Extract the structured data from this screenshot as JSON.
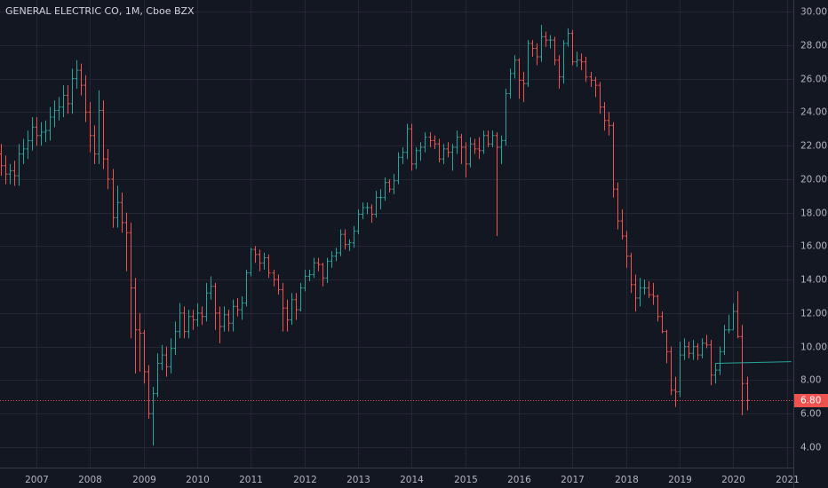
{
  "chart_data": {
    "type": "ohlc",
    "title": "GENERAL ELECTRIC CO, 1M, Cboe BZX",
    "x": [
      "2006-05",
      "2006-06",
      "2006-07",
      "2006-08",
      "2006-09",
      "2006-10",
      "2006-11",
      "2006-12",
      "2007-01",
      "2007-02",
      "2007-03",
      "2007-04",
      "2007-05",
      "2007-06",
      "2007-07",
      "2007-08",
      "2007-09",
      "2007-10",
      "2007-11",
      "2007-12",
      "2008-01",
      "2008-02",
      "2008-03",
      "2008-04",
      "2008-05",
      "2008-06",
      "2008-07",
      "2008-08",
      "2008-09",
      "2008-10",
      "2008-11",
      "2008-12",
      "2009-01",
      "2009-02",
      "2009-03",
      "2009-04",
      "2009-05",
      "2009-06",
      "2009-07",
      "2009-08",
      "2009-09",
      "2009-10",
      "2009-11",
      "2009-12",
      "2010-01",
      "2010-02",
      "2010-03",
      "2010-04",
      "2010-05",
      "2010-06",
      "2010-07",
      "2010-08",
      "2010-09",
      "2010-10",
      "2010-11",
      "2010-12",
      "2011-01",
      "2011-02",
      "2011-03",
      "2011-04",
      "2011-05",
      "2011-06",
      "2011-07",
      "2011-08",
      "2011-09",
      "2011-10",
      "2011-11",
      "2011-12",
      "2012-01",
      "2012-02",
      "2012-03",
      "2012-04",
      "2012-05",
      "2012-06",
      "2012-07",
      "2012-08",
      "2012-09",
      "2012-10",
      "2012-11",
      "2012-12",
      "2013-01",
      "2013-02",
      "2013-03",
      "2013-04",
      "2013-05",
      "2013-06",
      "2013-07",
      "2013-08",
      "2013-09",
      "2013-10",
      "2013-11",
      "2013-12",
      "2014-01",
      "2014-02",
      "2014-03",
      "2014-04",
      "2014-05",
      "2014-06",
      "2014-07",
      "2014-08",
      "2014-09",
      "2014-10",
      "2014-11",
      "2014-12",
      "2015-01",
      "2015-02",
      "2015-03",
      "2015-04",
      "2015-05",
      "2015-06",
      "2015-07",
      "2015-08",
      "2015-09",
      "2015-10",
      "2015-11",
      "2015-12",
      "2016-01",
      "2016-02",
      "2016-03",
      "2016-04",
      "2016-05",
      "2016-06",
      "2016-07",
      "2016-08",
      "2016-09",
      "2016-10",
      "2016-11",
      "2016-12",
      "2017-01",
      "2017-02",
      "2017-03",
      "2017-04",
      "2017-05",
      "2017-06",
      "2017-07",
      "2017-08",
      "2017-09",
      "2017-10",
      "2017-11",
      "2017-12",
      "2018-01",
      "2018-02",
      "2018-03",
      "2018-04",
      "2018-05",
      "2018-06",
      "2018-07",
      "2018-08",
      "2018-09",
      "2018-10",
      "2018-11",
      "2018-12",
      "2019-01",
      "2019-02",
      "2019-03",
      "2019-04",
      "2019-05",
      "2019-06",
      "2019-07",
      "2019-08",
      "2019-09",
      "2019-10",
      "2019-11",
      "2019-12",
      "2020-01",
      "2020-02",
      "2020-03",
      "2020-04"
    ],
    "open": [
      21.5,
      20.8,
      20.3,
      20.5,
      20.2,
      21.5,
      21.8,
      22.3,
      23.1,
      22.6,
      22.8,
      22.9,
      23.7,
      24.1,
      24.3,
      25.0,
      24.5,
      26.0,
      26.5,
      25.6,
      24.0,
      22.6,
      21.5,
      24.1,
      21.2,
      20.0,
      17.7,
      18.6,
      17.4,
      16.8,
      13.5,
      11.0,
      10.8,
      8.5,
      6.0,
      7.2,
      9.0,
      9.5,
      8.8,
      9.9,
      10.9,
      12.0,
      10.9,
      11.8,
      11.6,
      12.0,
      11.8,
      13.2,
      13.6,
      12.0,
      11.2,
      11.9,
      11.4,
      12.4,
      12.2,
      12.6,
      14.4,
      15.8,
      15.5,
      15.0,
      15.3,
      14.4,
      14.0,
      13.4,
      12.3,
      11.6,
      12.8,
      12.2,
      13.5,
      14.2,
      14.3,
      15.0,
      14.9,
      14.1,
      15.1,
      15.4,
      15.6,
      16.7,
      16.1,
      16.2,
      16.9,
      17.9,
      18.3,
      18.3,
      17.9,
      18.9,
      18.9,
      19.8,
      19.4,
      19.9,
      21.3,
      21.6,
      23.0,
      20.9,
      21.7,
      21.9,
      22.5,
      22.3,
      22.1,
      21.2,
      21.8,
      21.6,
      21.9,
      22.5,
      21.9,
      20.9,
      22.1,
      21.8,
      21.7,
      22.6,
      22.1,
      22.6,
      21.9,
      22.3,
      25.1,
      26.3,
      27.1,
      25.9,
      25.7,
      28.1,
      27.8,
      27.3,
      28.5,
      28.3,
      28.3,
      27.1,
      26.1,
      28.1,
      28.7,
      27.0,
      27.1,
      27.0,
      26.1,
      25.9,
      25.6,
      24.3,
      23.5,
      23.2,
      19.4,
      17.5,
      16.6,
      15.4,
      13.7,
      12.9,
      13.5,
      13.5,
      13.1,
      13.0,
      11.8,
      10.9,
      9.7,
      7.4,
      7.3,
      9.5,
      10.0,
      9.6,
      10.0,
      9.5,
      10.2,
      10.1,
      8.3,
      8.6,
      9.7,
      11.0,
      11.0,
      12.1,
      10.6,
      7.8
    ],
    "high": [
      22.1,
      21.4,
      20.9,
      21.1,
      22.1,
      22.4,
      22.9,
      23.7,
      23.7,
      23.4,
      23.5,
      24.3,
      24.7,
      24.9,
      25.6,
      25.6,
      26.6,
      27.1,
      26.9,
      26.2,
      24.6,
      23.2,
      25.3,
      24.7,
      21.8,
      20.6,
      19.6,
      19.2,
      18.0,
      17.4,
      14.1,
      12.0,
      11.0,
      8.9,
      7.6,
      9.6,
      10.1,
      10.0,
      10.5,
      11.5,
      12.6,
      12.4,
      12.2,
      12.2,
      12.6,
      12.4,
      13.8,
      14.2,
      13.8,
      12.4,
      12.4,
      12.2,
      12.8,
      12.9,
      13.0,
      14.6,
      15.9,
      16.0,
      15.8,
      15.6,
      15.5,
      14.6,
      14.3,
      13.8,
      12.8,
      13.2,
      13.2,
      13.8,
      14.6,
      14.6,
      15.3,
      15.3,
      15.0,
      15.3,
      15.7,
      15.9,
      17.0,
      17.0,
      16.4,
      17.2,
      18.2,
      18.6,
      18.6,
      18.5,
      19.3,
      19.4,
      20.1,
      20.0,
      20.3,
      21.6,
      21.9,
      23.3,
      23.3,
      21.9,
      22.2,
      22.8,
      22.8,
      22.6,
      22.4,
      22.1,
      22.2,
      22.1,
      22.9,
      22.7,
      22.2,
      22.5,
      22.4,
      22.5,
      22.9,
      22.9,
      22.9,
      22.8,
      22.6,
      25.4,
      26.6,
      27.4,
      27.2,
      26.4,
      28.3,
      28.3,
      28.1,
      29.2,
      28.8,
      28.6,
      28.5,
      27.4,
      28.3,
      29.0,
      28.9,
      27.6,
      27.5,
      27.3,
      26.4,
      26.1,
      25.8,
      24.6,
      24.0,
      23.4,
      19.8,
      18.2,
      16.9,
      15.6,
      14.3,
      14.1,
      14.0,
      13.9,
      13.8,
      13.1,
      12.1,
      11.0,
      10.0,
      8.2,
      10.3,
      10.5,
      10.3,
      10.4,
      10.2,
      10.5,
      10.7,
      10.4,
      9.0,
      10.0,
      11.3,
      11.9,
      12.6,
      13.3,
      11.3,
      8.2
    ],
    "low": [
      20.2,
      19.7,
      19.7,
      19.6,
      19.6,
      20.9,
      21.2,
      21.7,
      22.0,
      22.0,
      22.2,
      22.3,
      23.1,
      23.5,
      23.7,
      23.9,
      23.9,
      25.4,
      25.0,
      23.4,
      21.6,
      20.9,
      20.9,
      20.6,
      19.4,
      17.1,
      17.1,
      16.8,
      14.5,
      10.5,
      8.4,
      8.5,
      7.8,
      5.7,
      4.1,
      7.0,
      8.6,
      8.2,
      8.4,
      9.5,
      10.5,
      10.5,
      10.5,
      11.0,
      11.2,
      11.3,
      11.5,
      12.8,
      11.0,
      10.2,
      10.9,
      10.9,
      10.9,
      11.8,
      11.6,
      12.4,
      14.2,
      15.0,
      14.5,
      14.6,
      14.1,
      13.6,
      13.1,
      10.9,
      10.9,
      11.3,
      11.6,
      12.1,
      13.3,
      13.9,
      14.1,
      14.5,
      13.6,
      13.8,
      14.7,
      15.1,
      15.4,
      15.8,
      15.7,
      15.9,
      16.7,
      17.6,
      17.9,
      17.4,
      17.7,
      18.2,
      18.7,
      19.2,
      19.1,
      19.7,
      20.9,
      21.2,
      20.5,
      20.6,
      21.1,
      21.6,
      21.9,
      21.8,
      21.0,
      20.9,
      21.3,
      20.5,
      21.5,
      20.9,
      20.1,
      20.7,
      21.5,
      21.2,
      21.5,
      21.9,
      21.9,
      16.6,
      20.9,
      22.0,
      24.8,
      26.0,
      24.8,
      24.6,
      25.5,
      27.3,
      26.8,
      27.0,
      27.9,
      27.8,
      26.8,
      25.4,
      25.7,
      27.9,
      26.8,
      26.7,
      26.5,
      25.8,
      25.5,
      24.9,
      23.9,
      22.9,
      22.6,
      18.9,
      17.0,
      16.4,
      14.7,
      13.2,
      12.1,
      12.4,
      13.1,
      12.9,
      12.5,
      11.5,
      10.8,
      9.0,
      7.1,
      6.4,
      7.0,
      9.2,
      9.3,
      9.2,
      9.2,
      9.3,
      9.9,
      7.7,
      7.8,
      8.3,
      9.5,
      10.8,
      11.0,
      10.5,
      5.9,
      6.2
    ],
    "close": [
      20.8,
      20.3,
      20.5,
      20.2,
      21.5,
      21.8,
      22.3,
      23.1,
      22.6,
      22.8,
      22.9,
      23.7,
      24.1,
      24.3,
      25.0,
      24.5,
      26.0,
      26.5,
      25.6,
      24.0,
      22.6,
      21.5,
      24.1,
      21.2,
      20.0,
      17.7,
      18.6,
      17.4,
      16.8,
      13.5,
      11.0,
      10.8,
      8.5,
      6.0,
      7.2,
      9.0,
      9.5,
      8.8,
      9.9,
      10.9,
      12.0,
      10.9,
      11.8,
      11.6,
      12.0,
      11.8,
      13.2,
      13.6,
      12.0,
      11.2,
      11.9,
      11.4,
      12.4,
      12.2,
      12.6,
      14.4,
      15.8,
      15.5,
      15.0,
      15.3,
      14.4,
      14.0,
      13.4,
      12.3,
      11.6,
      12.8,
      12.2,
      13.5,
      14.2,
      14.3,
      15.0,
      14.9,
      14.1,
      15.1,
      15.4,
      15.6,
      16.7,
      16.1,
      16.2,
      16.9,
      17.9,
      18.3,
      18.3,
      17.9,
      18.9,
      18.9,
      19.8,
      19.4,
      19.9,
      21.3,
      21.6,
      23.0,
      20.9,
      21.7,
      21.9,
      22.5,
      22.3,
      22.1,
      21.2,
      21.8,
      21.6,
      21.9,
      22.5,
      21.9,
      20.9,
      22.1,
      21.8,
      21.7,
      22.6,
      22.1,
      22.6,
      21.9,
      22.3,
      25.1,
      26.3,
      27.1,
      25.9,
      25.7,
      28.1,
      27.8,
      27.3,
      28.5,
      28.3,
      28.3,
      27.1,
      26.1,
      28.1,
      28.7,
      27.0,
      27.1,
      27.0,
      26.1,
      25.9,
      25.6,
      24.3,
      23.5,
      23.2,
      19.4,
      17.5,
      16.6,
      15.4,
      13.7,
      12.9,
      13.5,
      13.5,
      13.1,
      13.0,
      11.8,
      10.9,
      9.7,
      7.4,
      7.3,
      9.5,
      10.0,
      9.6,
      10.0,
      9.5,
      10.2,
      10.1,
      8.3,
      8.6,
      9.7,
      11.0,
      11.0,
      12.1,
      10.6,
      7.8,
      6.8
    ],
    "up_color": "#26a69a",
    "down_color": "#ef5350",
    "xlim": [
      2006.32,
      2021.12
    ],
    "xticks": [
      2007,
      2008,
      2009,
      2010,
      2011,
      2012,
      2013,
      2014,
      2015,
      2016,
      2017,
      2018,
      2019,
      2020,
      2021
    ],
    "ylim": [
      2.78,
      30.69
    ],
    "yticks": [
      {
        "value": 4,
        "label": "4.00"
      },
      {
        "value": 6,
        "label": "6.00"
      },
      {
        "value": 8,
        "label": "8.00"
      },
      {
        "value": 10,
        "label": "10.00"
      },
      {
        "value": 12,
        "label": "12.00"
      },
      {
        "value": 14,
        "label": "14.00"
      },
      {
        "value": 16,
        "label": "16.00"
      },
      {
        "value": 18,
        "label": "18.00"
      },
      {
        "value": 20,
        "label": "20.00"
      },
      {
        "value": 22,
        "label": "22.00"
      },
      {
        "value": 24,
        "label": "24.00"
      },
      {
        "value": 26,
        "label": "26.00"
      },
      {
        "value": 28,
        "label": "28.00"
      },
      {
        "value": 30,
        "label": "30.00"
      }
    ],
    "grid": true,
    "price_line": {
      "value": 6.8,
      "label": "6.80",
      "color": "#ef5350"
    },
    "trend_line": {
      "x": [
        "2019-09",
        "2021-02"
      ],
      "values": [
        9.0,
        9.1
      ],
      "color": "#26a69a"
    }
  }
}
